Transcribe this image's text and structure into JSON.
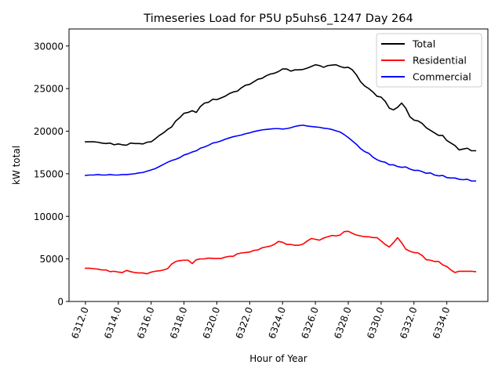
{
  "chart_data": {
    "type": "line",
    "title": "Timeseries Load for P5U p5uhs6_1247  Day 264",
    "xlabel": "Hour of Year",
    "ylabel": "kW total",
    "xlim": [
      6311.0,
      6336.5
    ],
    "ylim": [
      0,
      32000
    ],
    "x_ticks": [
      6312,
      6314,
      6316,
      6318,
      6320,
      6322,
      6324,
      6326,
      6328,
      6330,
      6332,
      6334
    ],
    "x_tick_labels": [
      "6312.0",
      "6314.0",
      "6316.0",
      "6318.0",
      "6320.0",
      "6322.0",
      "6324.0",
      "6326.0",
      "6328.0",
      "6330.0",
      "6332.0",
      "6334.0"
    ],
    "y_ticks": [
      0,
      5000,
      10000,
      15000,
      20000,
      25000,
      30000
    ],
    "y_tick_labels": [
      "0",
      "5000",
      "10000",
      "15000",
      "20000",
      "25000",
      "30000"
    ],
    "grid": false,
    "legend_position": "top-right",
    "x": [
      6312.0,
      6312.25,
      6312.5,
      6312.75,
      6313.0,
      6313.25,
      6313.5,
      6313.75,
      6314.0,
      6314.25,
      6314.5,
      6314.75,
      6315.0,
      6315.25,
      6315.5,
      6315.75,
      6316.0,
      6316.25,
      6316.5,
      6316.75,
      6317.0,
      6317.25,
      6317.5,
      6317.75,
      6318.0,
      6318.25,
      6318.5,
      6318.75,
      6319.0,
      6319.25,
      6319.5,
      6319.75,
      6320.0,
      6320.25,
      6320.5,
      6320.75,
      6321.0,
      6321.25,
      6321.5,
      6321.75,
      6322.0,
      6322.25,
      6322.5,
      6322.75,
      6323.0,
      6323.25,
      6323.5,
      6323.75,
      6324.0,
      6324.25,
      6324.5,
      6324.75,
      6325.0,
      6325.25,
      6325.5,
      6325.75,
      6326.0,
      6326.25,
      6326.5,
      6326.75,
      6327.0,
      6327.25,
      6327.5,
      6327.75,
      6328.0,
      6328.25,
      6328.5,
      6328.75,
      6329.0,
      6329.25,
      6329.5,
      6329.75,
      6330.0,
      6330.25,
      6330.5,
      6330.75,
      6331.0,
      6331.25,
      6331.5,
      6331.75,
      6332.0,
      6332.25,
      6332.5,
      6332.75,
      6333.0,
      6333.25,
      6333.5,
      6333.75,
      6334.0,
      6334.25,
      6334.5,
      6334.75,
      6335.0,
      6335.25,
      6335.5,
      6335.75
    ],
    "series": [
      {
        "name": "Total",
        "color": "#000000",
        "values": [
          18750,
          18750,
          18750,
          18700,
          18600,
          18550,
          18600,
          18400,
          18500,
          18400,
          18350,
          18600,
          18550,
          18550,
          18500,
          18700,
          18750,
          19100,
          19500,
          19800,
          20200,
          20500,
          21200,
          21600,
          22100,
          22200,
          22400,
          22200,
          22900,
          23300,
          23400,
          23750,
          23700,
          23900,
          24100,
          24400,
          24600,
          24700,
          25100,
          25400,
          25500,
          25800,
          26100,
          26200,
          26500,
          26700,
          26800,
          27000,
          27300,
          27300,
          27050,
          27200,
          27200,
          27250,
          27400,
          27600,
          27800,
          27700,
          27500,
          27700,
          27750,
          27800,
          27600,
          27450,
          27500,
          27200,
          26600,
          25800,
          25300,
          25000,
          24600,
          24100,
          24000,
          23500,
          22700,
          22500,
          22800,
          23300,
          22700,
          21700,
          21300,
          21200,
          20900,
          20400,
          20100,
          19800,
          19500,
          19500,
          18900,
          18600,
          18300,
          17800,
          17900,
          18000,
          17700,
          17700
        ]
      },
      {
        "name": "Residential",
        "color": "#ff0000",
        "values": [
          3900,
          3900,
          3850,
          3800,
          3700,
          3700,
          3500,
          3550,
          3450,
          3400,
          3650,
          3500,
          3400,
          3350,
          3350,
          3250,
          3450,
          3550,
          3600,
          3700,
          3850,
          4400,
          4700,
          4800,
          4850,
          4850,
          4450,
          4900,
          5000,
          5000,
          5100,
          5050,
          5050,
          5050,
          5200,
          5300,
          5300,
          5600,
          5700,
          5750,
          5800,
          6000,
          6050,
          6300,
          6400,
          6500,
          6700,
          7050,
          6950,
          6700,
          6700,
          6600,
          6600,
          6750,
          7100,
          7400,
          7300,
          7200,
          7450,
          7600,
          7750,
          7700,
          7800,
          8200,
          8250,
          8000,
          7800,
          7700,
          7600,
          7600,
          7500,
          7500,
          7100,
          6700,
          6400,
          6900,
          7500,
          6900,
          6150,
          5900,
          5750,
          5700,
          5400,
          4900,
          4850,
          4700,
          4700,
          4300,
          4100,
          3700,
          3400,
          3550,
          3550,
          3550,
          3550,
          3500
        ]
      },
      {
        "name": "Commercial",
        "color": "#0000ff",
        "values": [
          14800,
          14850,
          14850,
          14900,
          14850,
          14850,
          14900,
          14850,
          14850,
          14900,
          14900,
          14950,
          15000,
          15100,
          15150,
          15300,
          15450,
          15600,
          15850,
          16100,
          16350,
          16550,
          16700,
          16900,
          17200,
          17350,
          17550,
          17700,
          18000,
          18150,
          18350,
          18600,
          18700,
          18850,
          19050,
          19200,
          19350,
          19450,
          19550,
          19700,
          19800,
          19950,
          20050,
          20150,
          20200,
          20250,
          20300,
          20300,
          20250,
          20300,
          20400,
          20550,
          20650,
          20700,
          20600,
          20550,
          20500,
          20450,
          20350,
          20300,
          20200,
          20050,
          19900,
          19600,
          19250,
          18850,
          18450,
          17950,
          17600,
          17400,
          16950,
          16650,
          16450,
          16350,
          16050,
          16050,
          15850,
          15750,
          15800,
          15550,
          15400,
          15400,
          15250,
          15050,
          15100,
          14850,
          14750,
          14800,
          14550,
          14500,
          14500,
          14350,
          14300,
          14350,
          14150,
          14150
        ]
      }
    ]
  }
}
